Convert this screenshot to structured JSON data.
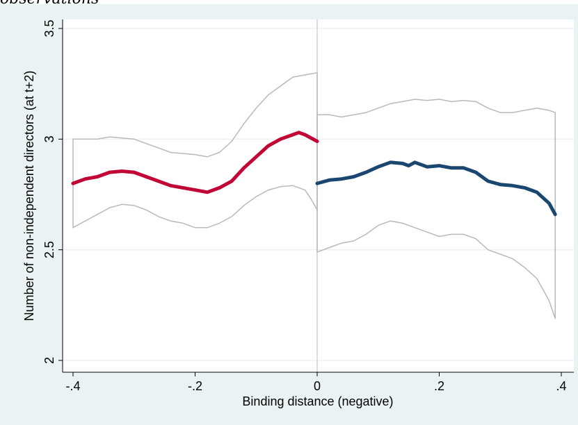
{
  "header_fragment": "observations",
  "colors": {
    "background": "#eaf2f3",
    "plot_area": "#ffffff",
    "left_fit": "#c10534",
    "right_fit": "#1a476f",
    "ci_band": "#b9b9b9",
    "grid": "#eaf2f3",
    "cutoff_line": "#d0d0d0"
  },
  "chart_data": {
    "type": "line",
    "title": "",
    "xlabel": "Binding distance (negative)",
    "ylabel": "Number of non-independent directors (at t+2)",
    "xlim": [
      -0.4,
      0.4
    ],
    "ylim": [
      2,
      3.5
    ],
    "xticks": [
      {
        "value": -0.4,
        "label": "-.4"
      },
      {
        "value": -0.2,
        "label": "-.2"
      },
      {
        "value": 0,
        "label": "0"
      },
      {
        "value": 0.2,
        "label": ".2"
      },
      {
        "value": 0.4,
        "label": ".4"
      }
    ],
    "yticks": [
      {
        "value": 2,
        "label": "2"
      },
      {
        "value": 2.5,
        "label": "2.5"
      },
      {
        "value": 3,
        "label": "3"
      },
      {
        "value": 3.5,
        "label": "3.5"
      }
    ],
    "grid": true,
    "legend": "none",
    "cutoff": 0,
    "series": [
      {
        "role": "left-fit",
        "x": [
          -0.4,
          -0.38,
          -0.36,
          -0.34,
          -0.32,
          -0.3,
          -0.28,
          -0.26,
          -0.24,
          -0.22,
          -0.2,
          -0.18,
          -0.16,
          -0.14,
          -0.12,
          -0.1,
          -0.08,
          -0.06,
          -0.04,
          -0.03,
          -0.02,
          0
        ],
        "y": [
          2.8,
          2.82,
          2.83,
          2.85,
          2.855,
          2.85,
          2.83,
          2.81,
          2.79,
          2.78,
          2.77,
          2.76,
          2.78,
          2.81,
          2.87,
          2.92,
          2.97,
          3.0,
          3.02,
          3.03,
          3.02,
          2.99
        ]
      },
      {
        "role": "left-ci-upper",
        "x": [
          -0.4,
          -0.38,
          -0.36,
          -0.34,
          -0.32,
          -0.3,
          -0.28,
          -0.26,
          -0.24,
          -0.22,
          -0.2,
          -0.18,
          -0.16,
          -0.14,
          -0.12,
          -0.1,
          -0.08,
          -0.06,
          -0.04,
          -0.02,
          0
        ],
        "y": [
          3.0,
          3.0,
          3.0,
          3.01,
          3.005,
          3.0,
          2.98,
          2.96,
          2.94,
          2.935,
          2.93,
          2.92,
          2.94,
          2.99,
          3.07,
          3.14,
          3.2,
          3.24,
          3.28,
          3.29,
          3.3
        ]
      },
      {
        "role": "left-ci-lower",
        "x": [
          -0.4,
          -0.38,
          -0.36,
          -0.34,
          -0.32,
          -0.3,
          -0.28,
          -0.26,
          -0.24,
          -0.22,
          -0.2,
          -0.18,
          -0.16,
          -0.14,
          -0.12,
          -0.1,
          -0.08,
          -0.06,
          -0.04,
          -0.02,
          -0.01,
          0
        ],
        "y": [
          2.6,
          2.63,
          2.66,
          2.69,
          2.705,
          2.7,
          2.68,
          2.65,
          2.63,
          2.62,
          2.6,
          2.6,
          2.62,
          2.65,
          2.7,
          2.74,
          2.77,
          2.785,
          2.79,
          2.77,
          2.73,
          2.68
        ]
      },
      {
        "role": "right-fit",
        "x": [
          0,
          0.02,
          0.04,
          0.06,
          0.08,
          0.1,
          0.12,
          0.14,
          0.15,
          0.16,
          0.18,
          0.2,
          0.22,
          0.24,
          0.26,
          0.28,
          0.3,
          0.32,
          0.34,
          0.36,
          0.38,
          0.39
        ],
        "y": [
          2.8,
          2.815,
          2.82,
          2.83,
          2.85,
          2.875,
          2.895,
          2.89,
          2.88,
          2.895,
          2.875,
          2.88,
          2.87,
          2.87,
          2.85,
          2.81,
          2.795,
          2.79,
          2.78,
          2.76,
          2.71,
          2.66
        ]
      },
      {
        "role": "right-ci-upper",
        "x": [
          0,
          0.02,
          0.04,
          0.06,
          0.08,
          0.1,
          0.12,
          0.14,
          0.16,
          0.18,
          0.2,
          0.22,
          0.24,
          0.26,
          0.28,
          0.3,
          0.32,
          0.34,
          0.36,
          0.38,
          0.39
        ],
        "y": [
          3.11,
          3.11,
          3.1,
          3.11,
          3.12,
          3.14,
          3.16,
          3.17,
          3.18,
          3.175,
          3.18,
          3.17,
          3.175,
          3.17,
          3.14,
          3.12,
          3.12,
          3.13,
          3.14,
          3.13,
          3.12
        ]
      },
      {
        "role": "right-ci-lower",
        "x": [
          0,
          0.02,
          0.04,
          0.06,
          0.08,
          0.1,
          0.12,
          0.14,
          0.16,
          0.18,
          0.2,
          0.22,
          0.24,
          0.26,
          0.28,
          0.3,
          0.32,
          0.34,
          0.36,
          0.37,
          0.38,
          0.39
        ],
        "y": [
          2.49,
          2.51,
          2.53,
          2.54,
          2.57,
          2.61,
          2.63,
          2.62,
          2.6,
          2.58,
          2.56,
          2.57,
          2.57,
          2.55,
          2.5,
          2.48,
          2.46,
          2.42,
          2.37,
          2.32,
          2.27,
          2.19
        ]
      }
    ]
  }
}
